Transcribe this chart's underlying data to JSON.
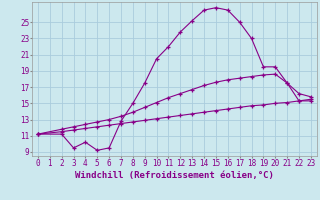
{
  "xlabel": "Windchill (Refroidissement éolien,°C)",
  "background_color": "#cce8ee",
  "grid_color": "#aaccdd",
  "line_color": "#880088",
  "xlim": [
    -0.5,
    23.5
  ],
  "ylim": [
    8.5,
    27.5
  ],
  "xticks": [
    0,
    1,
    2,
    3,
    4,
    5,
    6,
    7,
    8,
    9,
    10,
    11,
    12,
    13,
    14,
    15,
    16,
    17,
    18,
    19,
    20,
    21,
    22,
    23
  ],
  "yticks": [
    9,
    11,
    13,
    15,
    17,
    19,
    21,
    23,
    25
  ],
  "line1_x": [
    0,
    2,
    3,
    4,
    5,
    6,
    7,
    8,
    9,
    10,
    11,
    12,
    13,
    14,
    15,
    16,
    17,
    18,
    19,
    20,
    21,
    22,
    23
  ],
  "line1_y": [
    11.2,
    11.5,
    11.7,
    11.9,
    12.1,
    12.3,
    12.5,
    12.7,
    12.9,
    13.1,
    13.3,
    13.5,
    13.7,
    13.9,
    14.1,
    14.3,
    14.5,
    14.7,
    14.8,
    15.0,
    15.1,
    15.3,
    15.5
  ],
  "line2_x": [
    0,
    2,
    3,
    4,
    5,
    6,
    7,
    8,
    9,
    10,
    11,
    12,
    13,
    14,
    15,
    16,
    17,
    18,
    19,
    20,
    21,
    22,
    23
  ],
  "line2_y": [
    11.2,
    11.8,
    12.1,
    12.4,
    12.7,
    13.0,
    13.4,
    13.9,
    14.5,
    15.1,
    15.7,
    16.2,
    16.7,
    17.2,
    17.6,
    17.9,
    18.1,
    18.3,
    18.5,
    18.6,
    17.5,
    16.2,
    15.8
  ],
  "line3_x": [
    0,
    2,
    3,
    4,
    5,
    6,
    7,
    8,
    9,
    10,
    11,
    12,
    13,
    14,
    15,
    16,
    17,
    18,
    19,
    20,
    21,
    22,
    23
  ],
  "line3_y": [
    11.2,
    11.2,
    9.5,
    10.2,
    9.2,
    9.5,
    12.8,
    15.0,
    17.5,
    20.5,
    22.0,
    23.8,
    25.2,
    26.5,
    26.8,
    26.5,
    25.0,
    23.0,
    19.5,
    19.5,
    17.5,
    15.3,
    15.3
  ],
  "tick_fontsize": 5.5,
  "xlabel_fontsize": 6.5
}
